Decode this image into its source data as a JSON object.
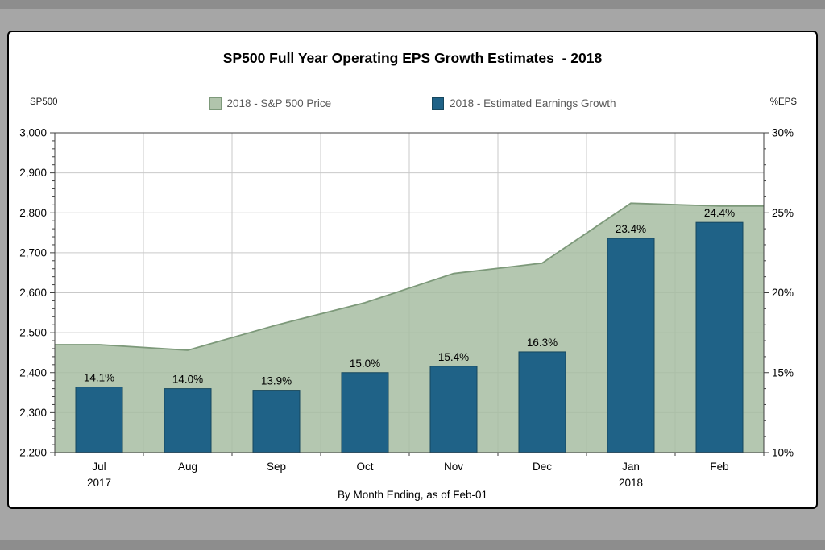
{
  "window": {
    "background": "#a6a6a6",
    "panel_background": "#ffffff"
  },
  "chart": {
    "title": "SP500 Full Year Operating EPS Growth Estimates  - 2018",
    "left_axis_caption": "SP500",
    "right_axis_caption": "%EPS",
    "bottom_caption": "By Month Ending, as of Feb-01",
    "legend": [
      {
        "label": "2018 - S&P 500 Price",
        "swatch": "#b1c4ac",
        "swatch_border": "#7d997a"
      },
      {
        "label": "2018 - Estimated Earnings Growth",
        "swatch": "#1f6287",
        "swatch_border": "#16475e"
      }
    ]
  },
  "chart_data": {
    "type": "combo (area + bar)",
    "title": "SP500 Full Year Operating EPS Growth Estimates  - 2018",
    "xlabel": "By Month Ending, as of Feb-01",
    "grid": true,
    "legend_position": "top",
    "categories": [
      "Jul",
      "Aug",
      "Sep",
      "Oct",
      "Nov",
      "Dec",
      "Jan",
      "Feb"
    ],
    "category_years": [
      "2017",
      "",
      "",
      "",
      "",
      "",
      "2018",
      ""
    ],
    "series": [
      {
        "name": "2018 - S&P 500 Price",
        "type": "area",
        "axis": "left",
        "values": [
          2470,
          2456,
          2519,
          2575,
          2648,
          2674,
          2824,
          2817
        ]
      },
      {
        "name": "2018 - Estimated Earnings Growth",
        "type": "bar",
        "axis": "right",
        "values": [
          14.1,
          14.0,
          13.9,
          15.0,
          15.4,
          16.3,
          23.4,
          24.4
        ],
        "labels": [
          "14.1%",
          "14.0%",
          "13.9%",
          "15.0%",
          "15.4%",
          "16.3%",
          "23.4%",
          "24.4%"
        ]
      }
    ],
    "left_axis": {
      "label": "SP500",
      "min": 2200,
      "max": 3000,
      "major": 100,
      "minor": 20,
      "tick_labels": [
        "2,200",
        "2,300",
        "2,400",
        "2,500",
        "2,600",
        "2,700",
        "2,800",
        "2,900",
        "3,000"
      ]
    },
    "right_axis": {
      "label": "%EPS",
      "min": 10,
      "max": 30,
      "major": 5,
      "minor": 1,
      "tick_labels": [
        "10%",
        "15%",
        "20%",
        "25%",
        "30%"
      ]
    }
  },
  "colors": {
    "area_fill": "#a7bda2",
    "area_stroke": "#7d997a",
    "bar_fill": "#1f6287",
    "bar_stroke": "#16475e",
    "grid": "#c9c9c9",
    "axis": "#3f3f3f"
  }
}
